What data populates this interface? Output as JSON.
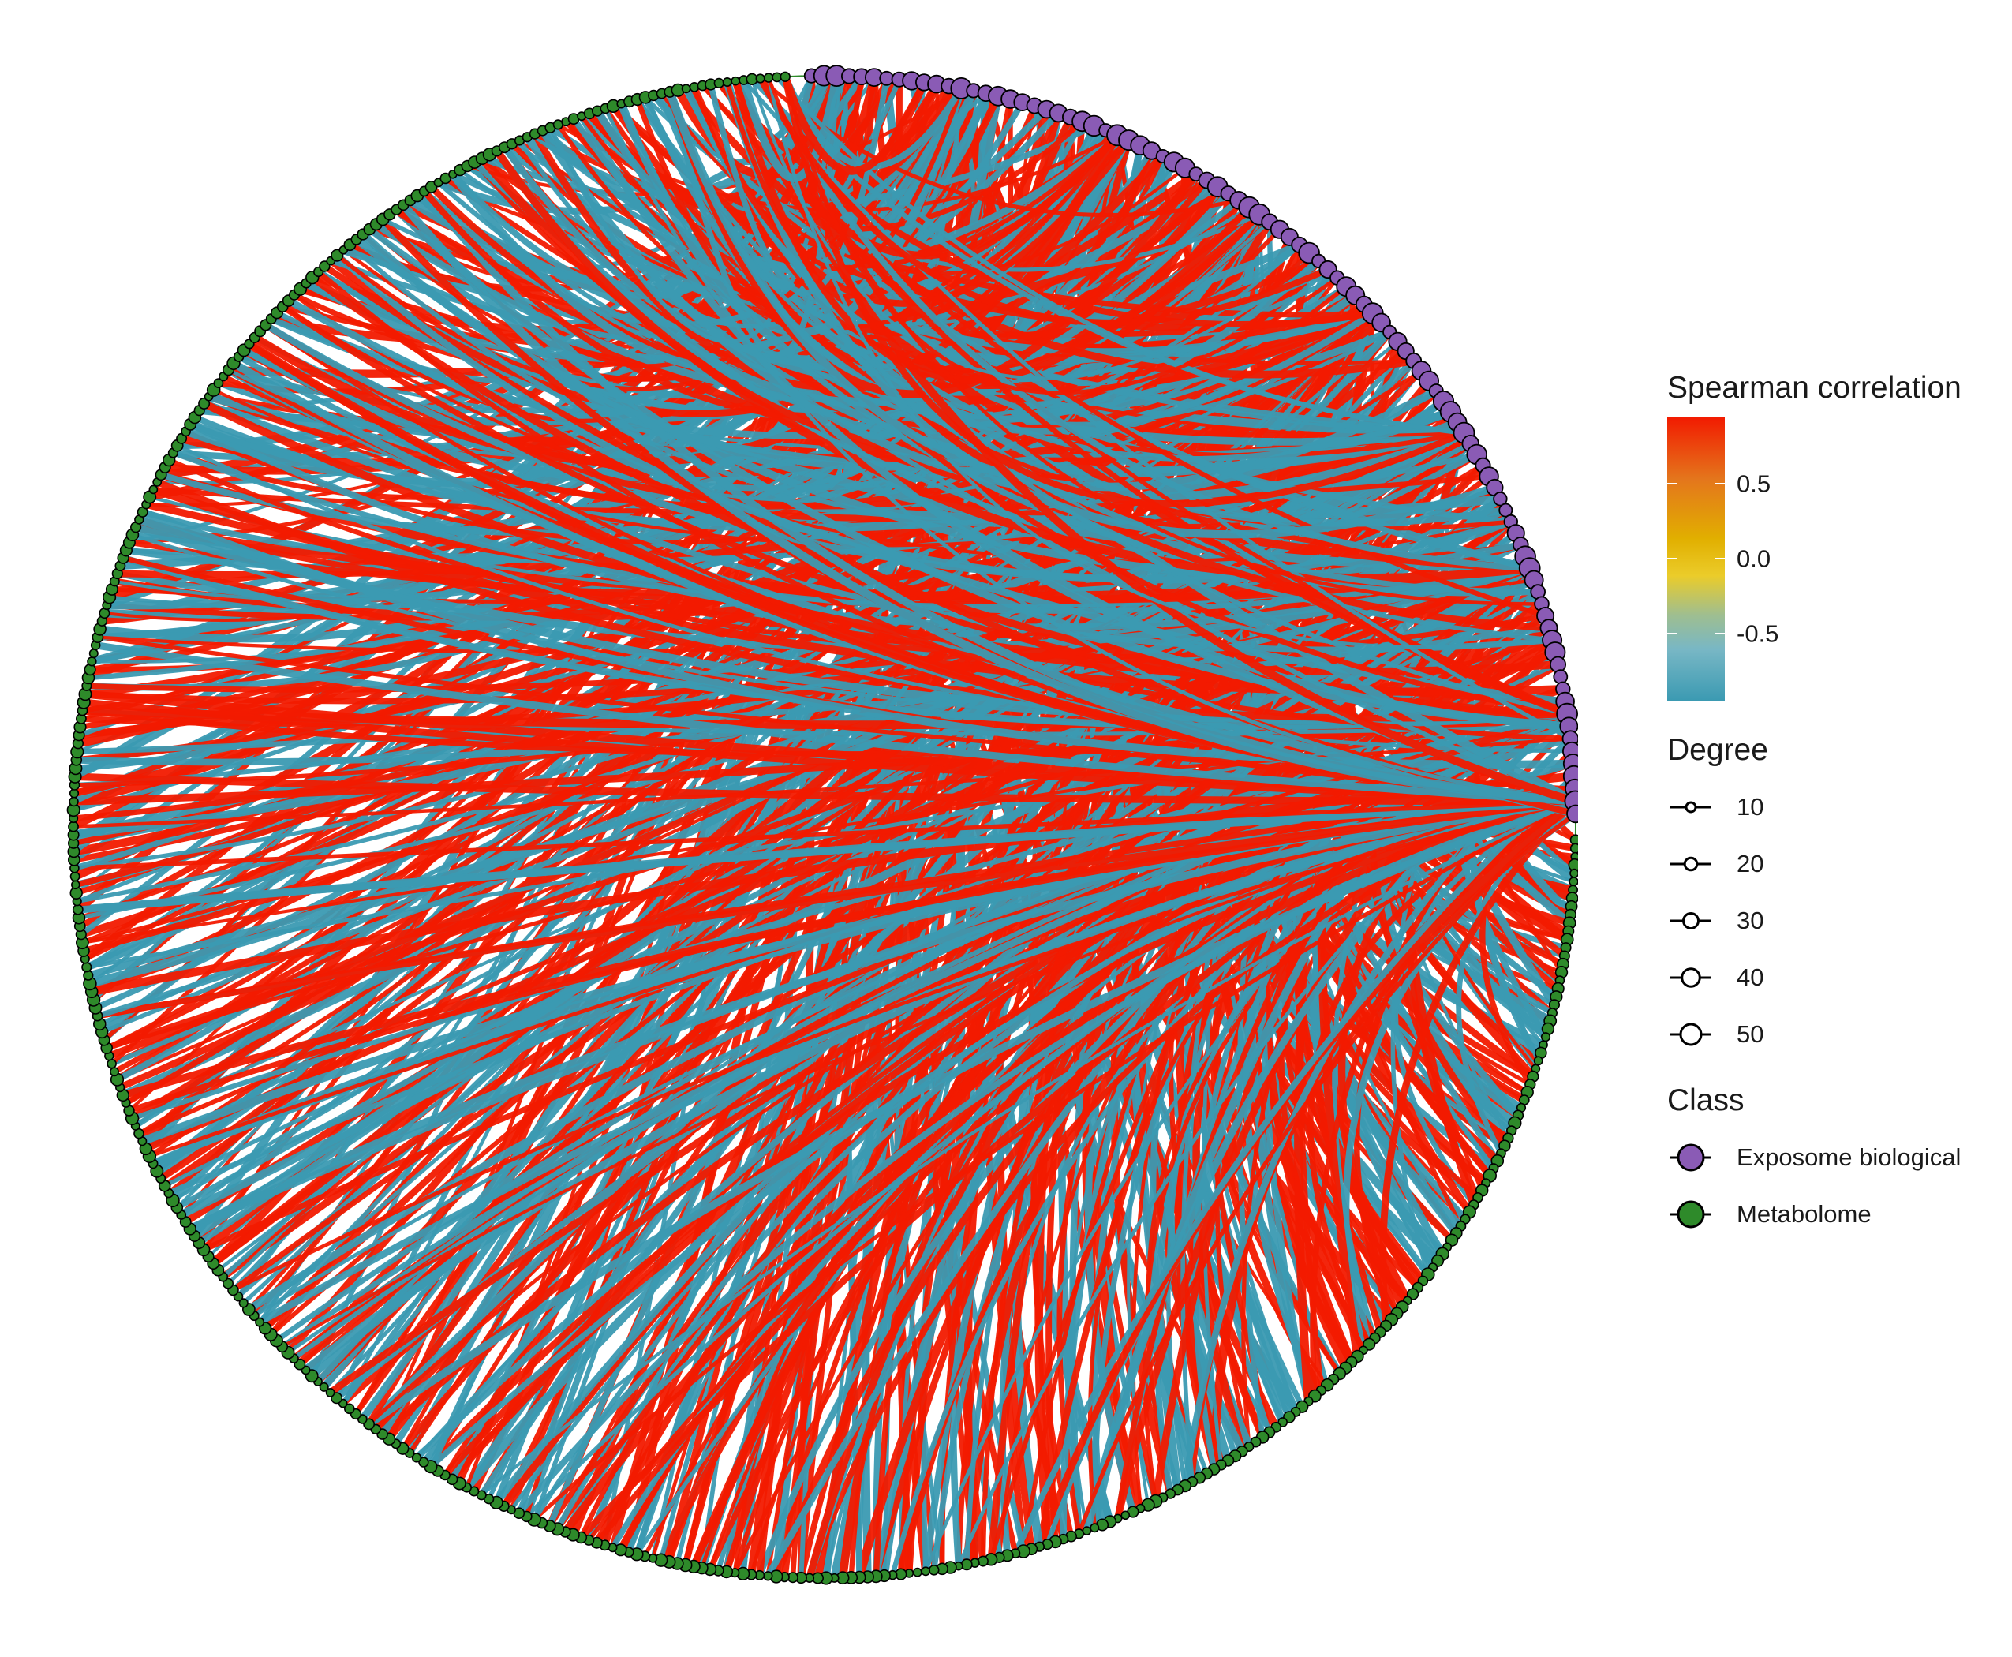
{
  "colors": {
    "positive": "#F21A00",
    "negative": "#3B9AB2",
    "exposome_node": "#8A5BB5",
    "metabolome_node": "#2E8A2A",
    "node_outline": "#000000"
  },
  "legend": {
    "correlation": {
      "title": "Spearman correlation",
      "ticks": [
        {
          "label": "0.5",
          "value": 0.5
        },
        {
          "label": "0.0",
          "value": 0.0
        },
        {
          "label": "-0.5",
          "value": -0.5
        }
      ],
      "range": [
        -0.95,
        0.95
      ]
    },
    "degree": {
      "title": "Degree",
      "items": [
        {
          "label": "10",
          "value": 10
        },
        {
          "label": "20",
          "value": 20
        },
        {
          "label": "30",
          "value": 30
        },
        {
          "label": "40",
          "value": 40
        },
        {
          "label": "50",
          "value": 50
        }
      ]
    },
    "class": {
      "title": "Class",
      "items": [
        {
          "label": "Exposome biological",
          "color": "#8A5BB5"
        },
        {
          "label": "Metabolome",
          "color": "#2E8A2A"
        }
      ]
    }
  },
  "network": {
    "layout": "circular",
    "exposome_arc_deg": [
      -92,
      0
    ],
    "metabolome_arc_deg": [
      0,
      268
    ],
    "exposome_node_count": 95,
    "metabolome_node_count": 420,
    "edge_count": 900,
    "positive_fraction": 0.5
  }
}
